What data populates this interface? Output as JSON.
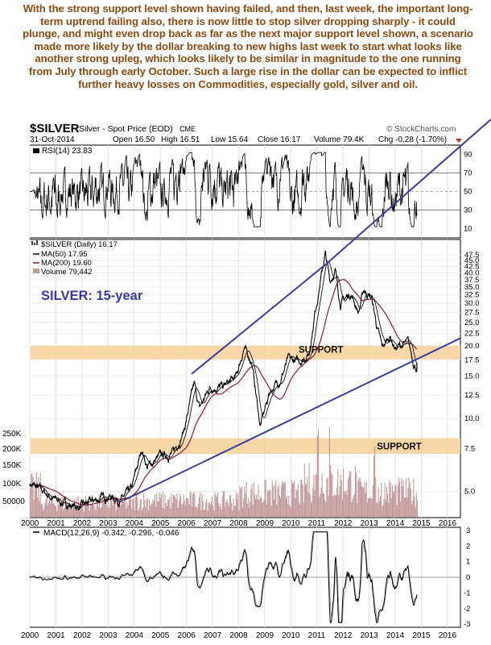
{
  "annotation": "With the strong support level shown having failed, and then, last week, the important long-term uptrend failing also, there is now little to stop silver dropping sharply - it could plunge, and might even drop back as far as the next major support level shown, a scenario made more likely by the dollar breaking to new highs last week to start what looks like another strong upleg, which looks likely to be similar in magnitude to the one running from July through early October. Such a large rise in the dollar can be expected to inflict further heavy losses on Commodities, especially gold, silver and oil.",
  "header": {
    "symbol": "$SILVER",
    "name": "Silver - Spot Price (EOD)",
    "exchange": "CME",
    "date": "31-Oct-2014",
    "open": "Open 16.50",
    "high": "High 16.51",
    "low": "Low 15.64",
    "close": "Close 16.17",
    "volume": "Volume 79.4K",
    "change": "Chg -0.28 (-1.70%)",
    "credit": "© StockCharts.com"
  },
  "chart_data": {
    "type": "line",
    "title": "SILVER: 15-year",
    "x_range": [
      2000,
      2016.5
    ],
    "x_ticks": [
      "2000",
      "2001",
      "2002",
      "2003",
      "2004",
      "2005",
      "2006",
      "2007",
      "2008",
      "2009",
      "2010",
      "2011",
      "2012",
      "2013",
      "2014",
      "2015",
      "2016"
    ],
    "rsi": {
      "label": "RSI(14) 23.83",
      "ylim": [
        0,
        100
      ],
      "ticks": [
        "90",
        "70",
        "50",
        "30",
        "10"
      ]
    },
    "price": {
      "scale": "log",
      "ylim": [
        3.9,
        55
      ],
      "legend": [
        "$SILVER (Daily) 16.17",
        "MA(50) 17.95",
        "MA(200) 19.60",
        "Volume 79,442"
      ],
      "ticks": [
        "47.5",
        "45.0",
        "42.5",
        "40.0",
        "37.5",
        "35.0",
        "32.5",
        "30.0",
        "27.5",
        "25.0",
        "22.5",
        "20.0",
        "17.5",
        "15.0",
        "12.5",
        "10.0",
        "7.5",
        "5.0"
      ],
      "volume_ticks": [
        "250K",
        "200K",
        "150K",
        "100K",
        "50000"
      ],
      "series": [
        {
          "name": "$SILVER (Daily) 16.17",
          "x": [
            2000.0,
            2000.5,
            2001.0,
            2001.5,
            2001.9,
            2002.5,
            2003.0,
            2003.5,
            2003.9,
            2004.3,
            2004.5,
            2005.0,
            2005.5,
            2005.9,
            2006.3,
            2006.5,
            2006.9,
            2007.4,
            2007.9,
            2008.2,
            2008.5,
            2008.83,
            2009.2,
            2009.6,
            2009.9,
            2010.3,
            2010.7,
            2010.95,
            2011.32,
            2011.5,
            2011.7,
            2011.9,
            2012.3,
            2012.6,
            2012.8,
            2013.1,
            2013.3,
            2013.5,
            2013.8,
            2014.0,
            2014.3,
            2014.5,
            2014.7,
            2014.83
          ],
          "y": [
            5.4,
            5.0,
            4.6,
            4.4,
            4.3,
            4.6,
            4.8,
            4.6,
            5.1,
            7.5,
            6.3,
            7.0,
            7.2,
            8.9,
            13.8,
            11.0,
            13.5,
            13.5,
            14.8,
            19.5,
            17.3,
            9.3,
            13.0,
            14.5,
            17.5,
            17.2,
            18.5,
            28.5,
            48.0,
            37.0,
            41.0,
            30.0,
            33.0,
            27.5,
            34.0,
            31.5,
            24.0,
            19.5,
            22.0,
            19.5,
            20.2,
            20.5,
            17.2,
            16.17
          ]
        },
        {
          "name": "MA(50) 17.95"
        },
        {
          "name": "MA(200) 19.60"
        }
      ],
      "annotations": [
        "SUPPORT",
        "SUPPORT"
      ]
    },
    "macd": {
      "label": "MACD(12,26,9) -0.342, -0.296, -0.046",
      "ylim": [
        -3.2,
        3.2
      ],
      "ticks": [
        "3",
        "2",
        "1",
        "0",
        "-1",
        "-2",
        "-3"
      ]
    },
    "colors": {
      "price": "#000000",
      "ma50": "#111111",
      "ma200": "#8b1a3a",
      "volume": "#c49a9a",
      "trendline": "#3d3d9c",
      "support_band": "#f6cf98",
      "title": "#3a3aa2",
      "headline": "#8a4b12"
    }
  }
}
